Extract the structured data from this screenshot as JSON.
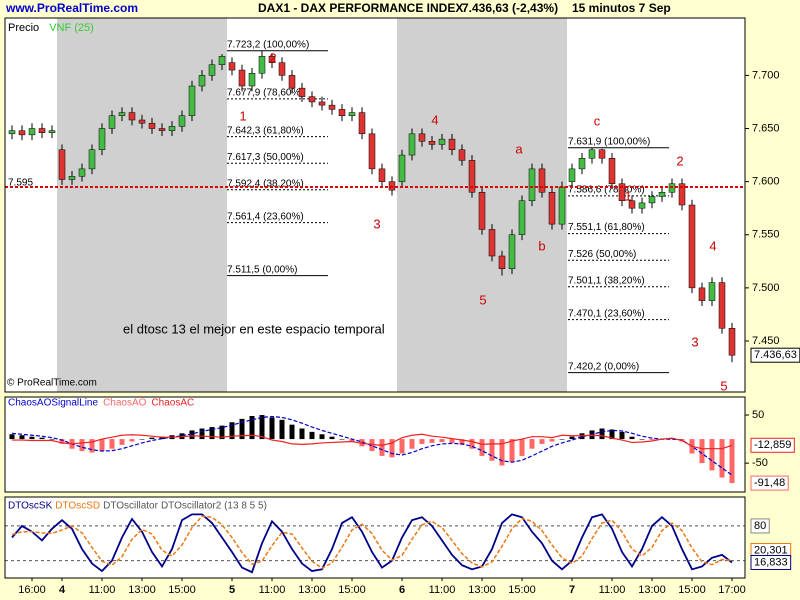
{
  "chart_data": [
    {
      "type": "candlestick",
      "source": "www.ProRealTime.com",
      "title": "DAX1 - DAX PERFORMANCE INDEX",
      "subtitle": "7.436,63 (-2,43%)",
      "timeframe": "15 minutos  7 Sep",
      "copyright": "© ProRealTime.com",
      "legend": [
        {
          "name": "Precio",
          "color": "#000000"
        },
        {
          "name": "VNF (25)",
          "color": "#33cc33"
        }
      ],
      "categories": [
        null,
        null,
        "16:00",
        null,
        null,
        "4",
        null,
        null,
        null,
        "11:00",
        null,
        null,
        null,
        "13:00",
        null,
        null,
        null,
        "15:00",
        null,
        null,
        null,
        null,
        "5",
        null,
        null,
        null,
        "11:00",
        null,
        null,
        null,
        "13:00",
        null,
        null,
        null,
        "15:00",
        null,
        null,
        null,
        null,
        "6",
        null,
        null,
        null,
        "11:00",
        null,
        null,
        null,
        "13:00",
        null,
        null,
        null,
        "15:00",
        null,
        null,
        null,
        null,
        "7",
        null,
        null,
        null,
        "11:00",
        null,
        null,
        null,
        "13:00",
        null,
        null,
        null,
        "15:00",
        null,
        null,
        null,
        "17:00"
      ],
      "open": [
        7645,
        7648,
        7644,
        7650,
        7646,
        7630,
        7602,
        7605,
        7612,
        7630,
        7650,
        7662,
        7665,
        7658,
        7655,
        7650,
        7648,
        7652,
        7662,
        7690,
        7700,
        7710,
        7712,
        7705,
        7690,
        7702,
        7718,
        7712,
        7700,
        7688,
        7680,
        7675,
        7672,
        7668,
        7662,
        7665,
        7645,
        7612,
        7600,
        7600,
        7625,
        7645,
        7638,
        7635,
        7640,
        7630,
        7620,
        7590,
        7555,
        7530,
        7518,
        7550,
        7582,
        7612,
        7590,
        7560,
        7600,
        7612,
        7622,
        7630,
        7622,
        7598,
        7582,
        7575,
        7580,
        7586,
        7590,
        7598,
        7578,
        7500,
        7488,
        7505,
        7462
      ],
      "high": [
        7653,
        7653,
        7655,
        7655,
        7653,
        7635,
        7610,
        7617,
        7635,
        7655,
        7667,
        7670,
        7670,
        7663,
        7660,
        7655,
        7657,
        7667,
        7695,
        7705,
        7715,
        7720,
        7717,
        7710,
        7707,
        7723.2,
        7721,
        7717,
        7705,
        7693,
        7685,
        7680,
        7677,
        7673,
        7670,
        7670,
        7650,
        7617,
        7605,
        7630,
        7650,
        7650,
        7643,
        7645,
        7645,
        7635,
        7625,
        7595,
        7560,
        7535,
        7555,
        7587,
        7617,
        7617,
        7595,
        7600,
        7617,
        7627,
        7631.9,
        7631,
        7627,
        7603,
        7587,
        7585,
        7591,
        7595,
        7603,
        7603,
        7583,
        7505,
        7510,
        7510,
        7467
      ],
      "low": [
        7640,
        7639,
        7639,
        7641,
        7641,
        7597,
        7597,
        7600,
        7607,
        7625,
        7645,
        7657,
        7653,
        7650,
        7645,
        7643,
        7643,
        7647,
        7657,
        7685,
        7695,
        7705,
        7700,
        7685,
        7685,
        7697,
        7707,
        7695,
        7683,
        7675,
        7670,
        7667,
        7663,
        7657,
        7657,
        7640,
        7607,
        7595,
        7587,
        7595,
        7620,
        7633,
        7630,
        7630,
        7625,
        7615,
        7585,
        7550,
        7525,
        7511.5,
        7513,
        7545,
        7577,
        7585,
        7555,
        7555,
        7595,
        7607,
        7617,
        7617,
        7593,
        7577,
        7570,
        7570,
        7575,
        7581,
        7585,
        7573,
        7495,
        7483,
        7483,
        7457,
        7430
      ],
      "close": [
        7648,
        7644,
        7650,
        7646,
        7648,
        7602,
        7605,
        7612,
        7630,
        7650,
        7662,
        7665,
        7658,
        7655,
        7650,
        7648,
        7652,
        7662,
        7690,
        7700,
        7710,
        7718,
        7705,
        7690,
        7702,
        7718,
        7712,
        7700,
        7688,
        7680,
        7675,
        7672,
        7668,
        7662,
        7665,
        7645,
        7612,
        7600,
        7592,
        7625,
        7645,
        7638,
        7635,
        7640,
        7630,
        7620,
        7590,
        7555,
        7530,
        7518,
        7550,
        7582,
        7612,
        7590,
        7560,
        7595,
        7612,
        7622,
        7630,
        7622,
        7598,
        7582,
        7575,
        7580,
        7586,
        7590,
        7598,
        7578,
        7500,
        7488,
        7505,
        7462,
        7436.63
      ],
      "up_color": "#44bb44",
      "down_color": "#dd3333",
      "ylim": [
        7402,
        7754
      ],
      "yticks": [
        {
          "value": 7450,
          "label": "7.450"
        },
        {
          "value": 7500,
          "label": "7.500"
        },
        {
          "value": 7550,
          "label": "7.550"
        },
        {
          "value": 7600,
          "label": "7.600"
        },
        {
          "value": 7650,
          "label": "7.650"
        },
        {
          "value": 7700,
          "label": "7.700"
        }
      ],
      "last": {
        "value": 7436.63,
        "label": "7.436,63"
      },
      "ref_line": {
        "value": 7595,
        "label": "7.595",
        "color": "#dd0000"
      },
      "fibonacci": [
        [
          {
            "value": 7723.2,
            "label": "7.723,2 (100,00%)"
          },
          {
            "value": 7677.9,
            "label": "7.677,9 (78,60%)"
          },
          {
            "value": 7642.3,
            "label": "7.642,3 (61,80%)"
          },
          {
            "value": 7617.3,
            "label": "7.617,3 (50,00%)"
          },
          {
            "value": 7592.4,
            "label": "7.592,4 (38,20%)"
          },
          {
            "value": 7561.4,
            "label": "7.561,4 (23,60%)"
          },
          {
            "value": 7511.5,
            "label": "7.511,5 (0,00%)"
          }
        ],
        [
          {
            "value": 7631.9,
            "label": "7.631,9 (100,00%)"
          },
          {
            "value": 7586.6,
            "label": "7.586,6 (78,60%)"
          },
          {
            "value": 7551.1,
            "label": "7.551,1 (61,80%)"
          },
          {
            "value": 7526,
            "label": "7.526 (50,00%)"
          },
          {
            "value": 7501.1,
            "label": "7.501,1 (38,20%)"
          },
          {
            "value": 7470.1,
            "label": "7.470,1 (23,60%)"
          },
          {
            "value": 7420.2,
            "label": "7.420,2 (0,00%)"
          }
        ]
      ],
      "annotations": [
        "1",
        "2",
        "3",
        "4",
        "5",
        "a",
        "b",
        "c",
        "1",
        "2",
        "3",
        "4",
        "5"
      ],
      "comment": "el dtosc 13 el mejor en este espacio temporal"
    },
    {
      "type": "bar",
      "series": [
        {
          "name": "ChaosAOSignalLine",
          "type": "line",
          "color": "#0000cc",
          "dashed": true,
          "values": [
            12,
            10,
            8,
            6,
            3,
            -2,
            -10,
            -17,
            -22,
            -25,
            -24,
            -20,
            -14,
            -8,
            -3,
            1,
            4,
            7,
            11,
            16,
            20,
            24,
            29,
            35,
            40,
            45,
            47,
            45,
            40,
            33,
            25,
            18,
            12,
            6,
            0,
            -6,
            -14,
            -22,
            -30,
            -33,
            -28,
            -20,
            -14,
            -10,
            -9,
            -10,
            -15,
            -24,
            -35,
            -45,
            -48,
            -44,
            -35,
            -25,
            -15,
            -8,
            -2,
            5,
            10,
            15,
            18,
            17,
            12,
            6,
            2,
            0,
            0,
            -2,
            -15,
            -30,
            -45,
            -60,
            -75
          ]
        },
        {
          "name": "ChaosAO",
          "type": "bar",
          "color": "#ff6666",
          "positive_color": "#000000",
          "values": [
            10,
            8,
            5,
            3,
            0,
            -10,
            -20,
            -25,
            -28,
            -25,
            -20,
            -12,
            -5,
            0,
            3,
            5,
            8,
            12,
            18,
            22,
            25,
            28,
            35,
            42,
            48,
            50,
            45,
            40,
            30,
            22,
            15,
            10,
            5,
            0,
            -5,
            -15,
            -25,
            -35,
            -38,
            -30,
            -20,
            -10,
            -8,
            -6,
            -8,
            -12,
            -20,
            -35,
            -45,
            -55,
            -48,
            -35,
            -20,
            -10,
            -5,
            0,
            5,
            12,
            18,
            22,
            20,
            15,
            5,
            0,
            -2,
            0,
            2,
            -5,
            -30,
            -50,
            -65,
            -80,
            -91.48
          ],
          "current": {
            "value": -91.48,
            "label": "-91,48"
          }
        },
        {
          "name": "ChaosAC",
          "type": "line",
          "color": "#ee2222",
          "dashed": false,
          "values": [
            -2,
            -2,
            -3,
            -3,
            -3,
            -8,
            -10,
            -8,
            -6,
            0,
            4,
            8,
            9,
            8,
            6,
            4,
            4,
            5,
            7,
            6,
            5,
            4,
            6,
            7,
            8,
            5,
            -2,
            -5,
            -10,
            -11,
            -10,
            -8,
            -7,
            -6,
            -5,
            -9,
            -11,
            -13,
            -8,
            3,
            8,
            10,
            6,
            4,
            1,
            -2,
            -5,
            -11,
            -10,
            -10,
            -4,
            0,
            5,
            5,
            3,
            8,
            7,
            7,
            8,
            7,
            2,
            -2,
            -7,
            -6,
            -4,
            0,
            2,
            -3,
            -15,
            -20,
            -20,
            -20,
            -12.859
          ],
          "current": {
            "value": -12.859,
            "label": "-12,859"
          }
        }
      ],
      "ylim": [
        -110,
        87.5
      ],
      "yticks": [
        -50,
        50
      ]
    },
    {
      "type": "line",
      "series": [
        {
          "name": "DTOscSK",
          "color": "#000088",
          "dashed": false,
          "values": [
            60,
            80,
            70,
            55,
            75,
            90,
            75,
            40,
            15,
            2,
            20,
            60,
            92,
            70,
            35,
            10,
            40,
            90,
            100,
            100,
            85,
            60,
            35,
            8,
            0,
            50,
            88,
            70,
            40,
            15,
            2,
            5,
            40,
            85,
            95,
            70,
            35,
            8,
            20,
            60,
            90,
            95,
            80,
            55,
            30,
            12,
            5,
            10,
            40,
            85,
            100,
            95,
            70,
            50,
            20,
            5,
            20,
            60,
            95,
            100,
            75,
            35,
            10,
            40,
            80,
            95,
            80,
            40,
            5,
            10,
            25,
            30,
            16.833
          ],
          "current": {
            "value": 16.833,
            "label": "16,833"
          }
        },
        {
          "name": "DTOscSD",
          "color": "#ee7711",
          "dashed": true,
          "values": [
            65,
            70,
            70,
            68,
            67,
            73,
            80,
            68,
            43,
            19,
            12,
            27,
            57,
            74,
            66,
            38,
            28,
            47,
            77,
            97,
            95,
            82,
            60,
            34,
            14,
            19,
            46,
            69,
            66,
            42,
            19,
            7,
            16,
            43,
            73,
            83,
            67,
            38,
            21,
            29,
            57,
            82,
            88,
            77,
            55,
            32,
            16,
            9,
            18,
            45,
            75,
            93,
            88,
            72,
            47,
            25,
            15,
            28,
            58,
            85,
            90,
            70,
            40,
            28,
            43,
            72,
            85,
            72,
            42,
            18,
            13,
            22,
            20.301
          ],
          "current": {
            "value": 20.301,
            "label": "20,301"
          }
        }
      ],
      "legend_extra": [
        "DTOscillator",
        "DTOscillator2 (13 8 5 5)"
      ],
      "levels": [
        20,
        80
      ],
      "ylim": [
        -10,
        130
      ],
      "yticks": [
        80
      ]
    }
  ]
}
